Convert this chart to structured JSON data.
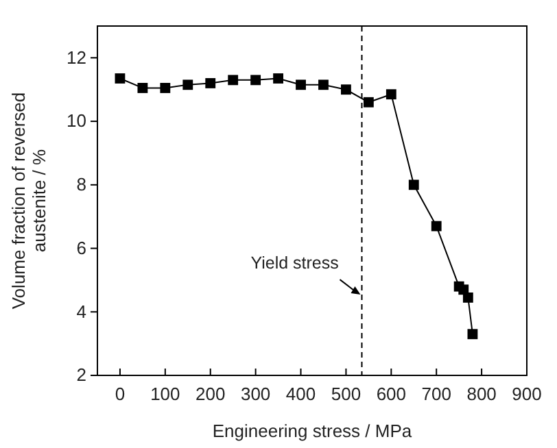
{
  "chart_data": {
    "type": "line",
    "xlabel": "Engineering stress / MPa",
    "ylabel": "Volume fraction of reversed\naustenite / %",
    "x": [
      0,
      50,
      100,
      150,
      200,
      250,
      300,
      350,
      400,
      450,
      500,
      550,
      600,
      650,
      700,
      750,
      760,
      770,
      780
    ],
    "series": [
      {
        "color": "#000000",
        "values": [
          11.35,
          11.05,
          11.05,
          11.15,
          11.2,
          11.3,
          11.3,
          11.35,
          11.15,
          11.15,
          11.0,
          10.6,
          10.85,
          8.0,
          6.7,
          4.8,
          4.7,
          4.45,
          3.3
        ]
      }
    ],
    "xlim": [
      -50,
      900
    ],
    "xticks": [
      0,
      100,
      200,
      300,
      400,
      500,
      600,
      700,
      800,
      900
    ],
    "ylim": [
      2,
      13
    ],
    "yticks": [
      2,
      4,
      6,
      8,
      10,
      12
    ],
    "ref_lines": [
      {
        "axis": "x",
        "value": 535,
        "line_style": "dashed",
        "color": "#000000"
      }
    ],
    "annotations": [
      {
        "text": "Yield stress",
        "x": 535,
        "y": 4.5
      }
    ],
    "marker": "square",
    "line_style": "solid",
    "grid": false
  }
}
